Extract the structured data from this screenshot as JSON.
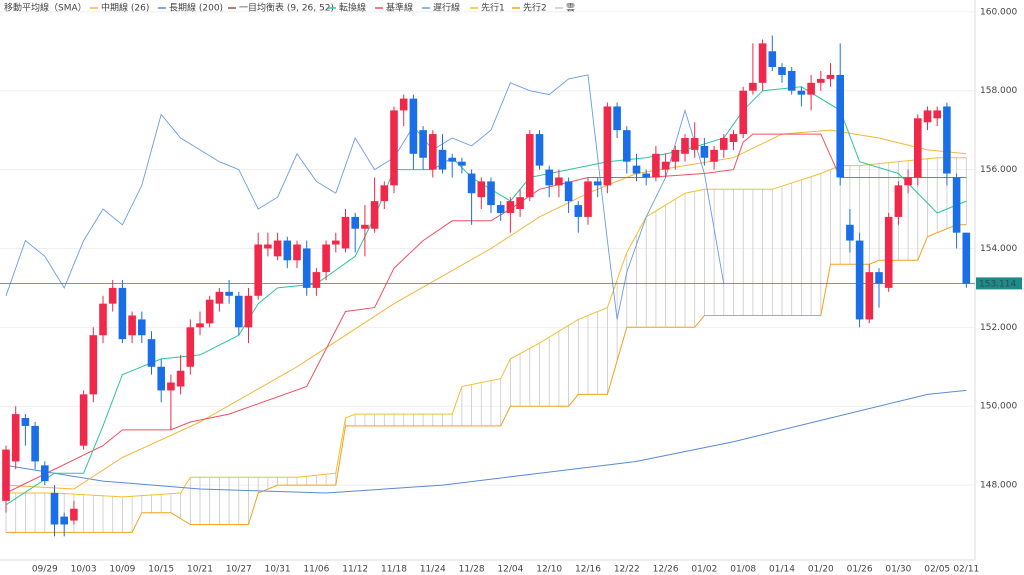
{
  "chart_data": {
    "type": "candlestick",
    "legend_title": "移動平均線（SMA）",
    "indicator_title": "一目均衡表 (9, 26, 52)",
    "indicator_color": "#a05050",
    "up_color": "#f0284a",
    "down_color": "#1a6fe8",
    "categories": [
      null,
      null,
      null,
      null,
      "09/29",
      null,
      null,
      null,
      "10/03",
      null,
      null,
      null,
      "10/09",
      null,
      null,
      null,
      "10/15",
      null,
      null,
      null,
      "10/21",
      null,
      null,
      null,
      "10/27",
      null,
      null,
      null,
      "10/31",
      null,
      null,
      null,
      "11/06",
      null,
      null,
      null,
      "11/12",
      null,
      null,
      null,
      "11/18",
      null,
      null,
      null,
      "11/24",
      null,
      null,
      null,
      "11/28",
      null,
      null,
      null,
      "12/04",
      null,
      null,
      null,
      "12/10",
      null,
      null,
      null,
      "12/16",
      null,
      null,
      null,
      "12/22",
      null,
      null,
      null,
      "12/26",
      null,
      null,
      null,
      "01/02",
      null,
      null,
      null,
      "01/08",
      null,
      null,
      null,
      "01/14",
      null,
      null,
      null,
      "01/20",
      null,
      null,
      null,
      "01/26",
      null,
      null,
      null,
      "01/30",
      null,
      null,
      null,
      "02/05",
      null,
      null,
      "02/11"
    ],
    "open": [
      147.6,
      148.6,
      149.7,
      149.5,
      148.5,
      147.8,
      147.2,
      147.1,
      149.0,
      150.3,
      151.8,
      152.6,
      153.0,
      151.8,
      152.2,
      151.7,
      151.0,
      150.4,
      150.5,
      151.0,
      152.0,
      152.1,
      152.6,
      152.9,
      152.8,
      152.0,
      152.8,
      154.0,
      153.8,
      154.2,
      153.7,
      154.0,
      153.0,
      153.4,
      154.1,
      154.0,
      154.8,
      154.5,
      154.5,
      155.2,
      155.6,
      157.5,
      157.8,
      157.0,
      156.0,
      156.5,
      156.3,
      156.2,
      155.9,
      155.3,
      155.7,
      155.1,
      154.9,
      155.0,
      155.3,
      156.9,
      156.0,
      155.6,
      155.7,
      155.1,
      154.8,
      155.7,
      155.6,
      157.6,
      157.0,
      156.1,
      155.9,
      155.8,
      156.0,
      156.2,
      156.4,
      156.5,
      156.6,
      156.2,
      156.5,
      156.7,
      156.9,
      158.0,
      158.2,
      159.0,
      158.6,
      158.5,
      158.0,
      157.9,
      158.2,
      158.3,
      158.4,
      154.6,
      154.2,
      152.2,
      153.4,
      153.0,
      154.8,
      155.6,
      155.8,
      157.2,
      157.3,
      157.6,
      155.8,
      154.4
    ],
    "high": [
      149.0,
      150.0,
      149.8,
      149.6,
      148.6,
      148.0,
      147.3,
      147.6,
      150.4,
      152.0,
      152.8,
      153.2,
      153.2,
      152.4,
      152.4,
      151.9,
      151.2,
      150.8,
      151.3,
      152.2,
      152.4,
      152.8,
      153.0,
      153.2,
      152.9,
      153.0,
      154.4,
      154.4,
      154.4,
      154.3,
      154.2,
      154.2,
      153.5,
      154.2,
      154.4,
      155.0,
      154.9,
      155.1,
      155.8,
      155.7,
      157.6,
      157.9,
      157.9,
      157.1,
      157.0,
      156.9,
      156.4,
      156.3,
      156.0,
      155.8,
      155.8,
      155.2,
      155.3,
      155.5,
      157.0,
      157.0,
      156.1,
      156.0,
      155.8,
      155.2,
      155.8,
      155.8,
      157.7,
      157.7,
      157.1,
      156.4,
      156.0,
      156.6,
      156.4,
      156.6,
      156.9,
      157.2,
      156.8,
      156.6,
      156.9,
      157.0,
      158.1,
      159.2,
      159.3,
      159.4,
      158.7,
      158.6,
      158.1,
      158.4,
      158.5,
      158.7,
      159.2,
      155.0,
      154.4,
      153.6,
      153.5,
      154.9,
      155.7,
      156.0,
      157.4,
      157.6,
      157.6,
      157.7,
      155.9,
      154.4
    ],
    "low": [
      147.3,
      148.4,
      149.0,
      148.4,
      148.0,
      146.7,
      146.7,
      147.0,
      148.9,
      150.1,
      151.6,
      152.4,
      151.6,
      151.6,
      151.6,
      150.8,
      150.1,
      149.4,
      150.3,
      150.8,
      151.8,
      152.0,
      152.4,
      152.6,
      151.8,
      151.6,
      152.7,
      153.8,
      153.7,
      153.5,
      153.5,
      152.8,
      152.8,
      153.2,
      153.9,
      153.9,
      153.9,
      153.8,
      154.4,
      155.0,
      155.4,
      157.1,
      156.0,
      156.0,
      155.8,
      155.9,
      155.8,
      155.9,
      154.6,
      155.0,
      154.9,
      154.7,
      154.4,
      154.8,
      155.2,
      156.0,
      155.3,
      155.3,
      154.9,
      154.4,
      154.6,
      155.3,
      155.4,
      156.8,
      155.9,
      155.7,
      155.6,
      155.7,
      155.8,
      156.0,
      156.2,
      156.3,
      156.1,
      156.0,
      156.3,
      156.5,
      156.8,
      157.9,
      158.0,
      158.5,
      158.2,
      157.9,
      157.6,
      157.5,
      158.0,
      158.1,
      155.6,
      153.9,
      152.0,
      152.1,
      152.5,
      152.9,
      154.6,
      155.4,
      155.6,
      157.0,
      157.1,
      155.6,
      154.0,
      153.0
    ],
    "close": [
      148.9,
      149.8,
      149.5,
      148.6,
      148.1,
      147.0,
      147.0,
      147.4,
      150.3,
      151.8,
      152.6,
      153.0,
      151.7,
      152.3,
      151.8,
      151.0,
      150.4,
      150.6,
      150.9,
      152.0,
      152.1,
      152.7,
      152.9,
      152.8,
      152.0,
      152.8,
      154.1,
      154.1,
      154.2,
      153.7,
      154.1,
      153.0,
      153.4,
      154.1,
      154.2,
      154.8,
      154.5,
      154.6,
      155.2,
      155.6,
      157.5,
      157.8,
      156.4,
      156.3,
      156.9,
      156.0,
      156.2,
      156.1,
      155.4,
      155.7,
      155.1,
      154.9,
      155.2,
      155.3,
      156.9,
      156.1,
      155.6,
      155.8,
      155.2,
      154.8,
      155.7,
      155.6,
      157.6,
      157.0,
      156.2,
      155.9,
      155.8,
      156.4,
      156.2,
      156.5,
      156.8,
      156.8,
      156.3,
      156.5,
      156.8,
      156.9,
      158.0,
      158.2,
      159.2,
      158.6,
      158.4,
      158.0,
      157.9,
      158.2,
      158.3,
      158.4,
      155.8,
      154.2,
      152.2,
      153.4,
      153.1,
      154.8,
      155.6,
      155.8,
      157.3,
      157.5,
      157.5,
      155.9,
      154.4,
      153.1
    ],
    "series": [
      {
        "name": "中期線 (26)",
        "color": "#f5b63a",
        "x": [
          0,
          7,
          12,
          20,
          30,
          40,
          50,
          55,
          60,
          65,
          70,
          75,
          80,
          85,
          90,
          95,
          99
        ],
        "values": [
          148.0,
          147.9,
          148.7,
          149.6,
          151.0,
          152.6,
          154.0,
          154.8,
          155.4,
          155.9,
          156.1,
          156.3,
          156.9,
          157.0,
          156.8,
          156.5,
          156.4
        ]
      },
      {
        "name": "長期線 (200)",
        "color": "#5a8ad8",
        "x": [
          0,
          10,
          20,
          33,
          45,
          55,
          65,
          75,
          85,
          95,
          99
        ],
        "values": [
          148.5,
          148.1,
          147.9,
          147.8,
          148.0,
          148.3,
          148.6,
          149.1,
          149.7,
          150.3,
          150.4
        ]
      },
      {
        "name": "転換線",
        "color": "#2ec4a0",
        "x": [
          0,
          5,
          8,
          10,
          12,
          16,
          20,
          24,
          26,
          28,
          32,
          36,
          38,
          40,
          44,
          46,
          48,
          52,
          54,
          58,
          62,
          66,
          70,
          74,
          76,
          78,
          82,
          86,
          88,
          92,
          96,
          99
        ],
        "values": [
          147.5,
          148.3,
          148.3,
          149.5,
          150.8,
          151.2,
          151.3,
          151.8,
          152.6,
          153.0,
          153.1,
          153.8,
          154.8,
          156.0,
          156.0,
          156.3,
          155.8,
          155.2,
          155.8,
          156.0,
          156.2,
          156.3,
          156.5,
          156.8,
          157.5,
          158.0,
          158.1,
          157.5,
          156.2,
          155.9,
          154.9,
          155.2
        ]
      },
      {
        "name": "基準線",
        "color": "#f05060",
        "x": [
          0,
          10,
          12,
          17,
          19,
          23,
          31,
          35,
          38,
          40,
          43,
          46,
          50,
          52,
          55,
          60,
          66,
          72,
          75,
          76,
          77,
          84,
          86,
          95,
          99
        ],
        "values": [
          147.8,
          149.0,
          149.4,
          149.4,
          149.6,
          149.8,
          150.5,
          152.4,
          152.5,
          153.5,
          154.2,
          154.7,
          154.7,
          155.0,
          155.5,
          155.8,
          155.8,
          155.9,
          156.0,
          156.7,
          156.9,
          156.9,
          155.8,
          155.8,
          155.8
        ]
      },
      {
        "name": "遅行線",
        "color": "#6a9be6",
        "x": [
          0,
          2,
          4,
          6,
          8,
          10,
          12,
          14,
          16,
          18,
          20,
          22,
          24,
          26,
          28,
          30,
          32,
          34,
          36,
          38,
          40,
          42,
          44,
          46,
          48,
          50,
          52,
          54,
          56,
          58,
          60,
          62,
          63,
          64,
          66,
          68,
          70,
          72,
          74
        ],
        "values": [
          152.8,
          154.2,
          153.8,
          153.0,
          154.2,
          155.0,
          154.6,
          155.6,
          157.4,
          156.8,
          156.5,
          156.2,
          156.0,
          155.0,
          155.3,
          156.4,
          155.7,
          155.4,
          156.8,
          156.0,
          156.3,
          157.1,
          156.5,
          156.8,
          156.6,
          157.0,
          158.2,
          158.0,
          157.9,
          158.3,
          158.4,
          154.2,
          152.2,
          153.4,
          154.8,
          155.8,
          157.5,
          155.9,
          153.1
        ]
      },
      {
        "name": "先行1",
        "color": "#f0c030",
        "x": [
          0,
          5,
          12,
          18,
          19,
          30,
          34,
          35,
          36,
          46,
          47,
          51,
          52,
          55,
          59,
          62,
          64,
          66,
          70,
          72,
          79,
          84,
          86,
          88,
          96,
          99
        ],
        "values": [
          147.8,
          147.8,
          147.7,
          147.8,
          148.2,
          148.2,
          148.3,
          149.7,
          149.8,
          149.8,
          150.5,
          150.7,
          151.2,
          151.6,
          152.2,
          152.5,
          153.9,
          154.8,
          155.4,
          155.5,
          155.5,
          155.9,
          156.1,
          156.1,
          156.3,
          156.3
        ]
      },
      {
        "name": "先行2",
        "color": "#f5a020",
        "x": [
          0,
          13,
          14,
          17,
          19,
          25,
          26,
          28,
          34,
          35,
          51,
          52,
          58,
          59,
          62,
          64,
          71,
          72,
          84,
          85,
          89,
          90,
          94,
          95,
          98,
          99
        ],
        "values": [
          146.8,
          146.8,
          147.3,
          147.3,
          147.0,
          147.0,
          147.8,
          148.0,
          148.0,
          149.5,
          149.5,
          150.0,
          150.0,
          150.3,
          150.3,
          152.0,
          152.0,
          152.3,
          152.3,
          153.6,
          153.6,
          153.7,
          153.7,
          154.3,
          154.6,
          154.6
        ]
      }
    ],
    "cloud": {
      "name": "雲",
      "color": "#c8c8c8"
    },
    "ylim": [
      146.1,
      160.3
    ],
    "yticks": [
      {
        "value": 148,
        "label": "148.000"
      },
      {
        "value": 150,
        "label": "150.000"
      },
      {
        "value": 152,
        "label": "152.000"
      },
      {
        "value": 154,
        "label": "154.000"
      },
      {
        "value": 156,
        "label": "156.000"
      },
      {
        "value": 158,
        "label": "158.000"
      },
      {
        "value": 160,
        "label": "160.000"
      }
    ],
    "grid": true,
    "last_price": 153.114,
    "last_price_color": "#1b8c8c"
  }
}
